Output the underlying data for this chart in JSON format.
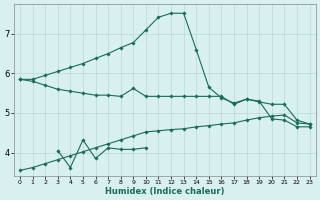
{
  "xlabel": "Humidex (Indice chaleur)",
  "x_values": [
    0,
    1,
    2,
    3,
    4,
    5,
    6,
    7,
    8,
    9,
    10,
    11,
    12,
    13,
    14,
    15,
    16,
    17,
    18,
    19,
    20,
    21,
    22,
    23
  ],
  "line1": [
    5.85,
    5.85,
    5.95,
    6.05,
    6.15,
    6.25,
    6.38,
    6.5,
    6.65,
    6.78,
    7.1,
    7.42,
    7.52,
    7.52,
    6.6,
    5.65,
    5.38,
    5.25,
    5.35,
    5.3,
    4.85,
    4.82,
    4.65,
    4.65
  ],
  "line2": [
    5.85,
    5.8,
    5.7,
    5.6,
    5.55,
    5.5,
    5.45,
    5.45,
    5.42,
    5.62,
    5.42,
    5.42,
    5.42,
    5.42,
    5.42,
    5.42,
    5.42,
    5.22,
    5.35,
    5.28,
    5.22,
    5.22,
    4.82,
    4.72
  ],
  "line3_x": [
    3,
    4,
    5,
    6,
    7,
    8,
    9,
    10
  ],
  "line3_y": [
    4.05,
    3.62,
    4.32,
    3.85,
    4.12,
    4.08,
    4.08,
    4.12
  ],
  "line4": [
    3.55,
    3.62,
    3.72,
    3.82,
    3.92,
    4.02,
    4.12,
    4.22,
    4.32,
    4.42,
    4.52,
    4.55,
    4.58,
    4.6,
    4.65,
    4.68,
    4.72,
    4.75,
    4.82,
    4.88,
    4.92,
    4.95,
    4.75,
    4.72
  ],
  "line_color": "#1a6b5a",
  "bg_color": "#d8f0f0",
  "grid_color": "#b8dada",
  "ylim": [
    3.4,
    7.75
  ],
  "xlim": [
    -0.5,
    23.5
  ],
  "yticks": [
    4,
    5,
    6,
    7
  ],
  "xtick_labels": [
    "0",
    "1",
    "2",
    "3",
    "4",
    "5",
    "6",
    "7",
    "8",
    "9",
    "10",
    "11",
    "12",
    "13",
    "14",
    "15",
    "16",
    "17",
    "18",
    "19",
    "20",
    "21",
    "22",
    "23"
  ]
}
